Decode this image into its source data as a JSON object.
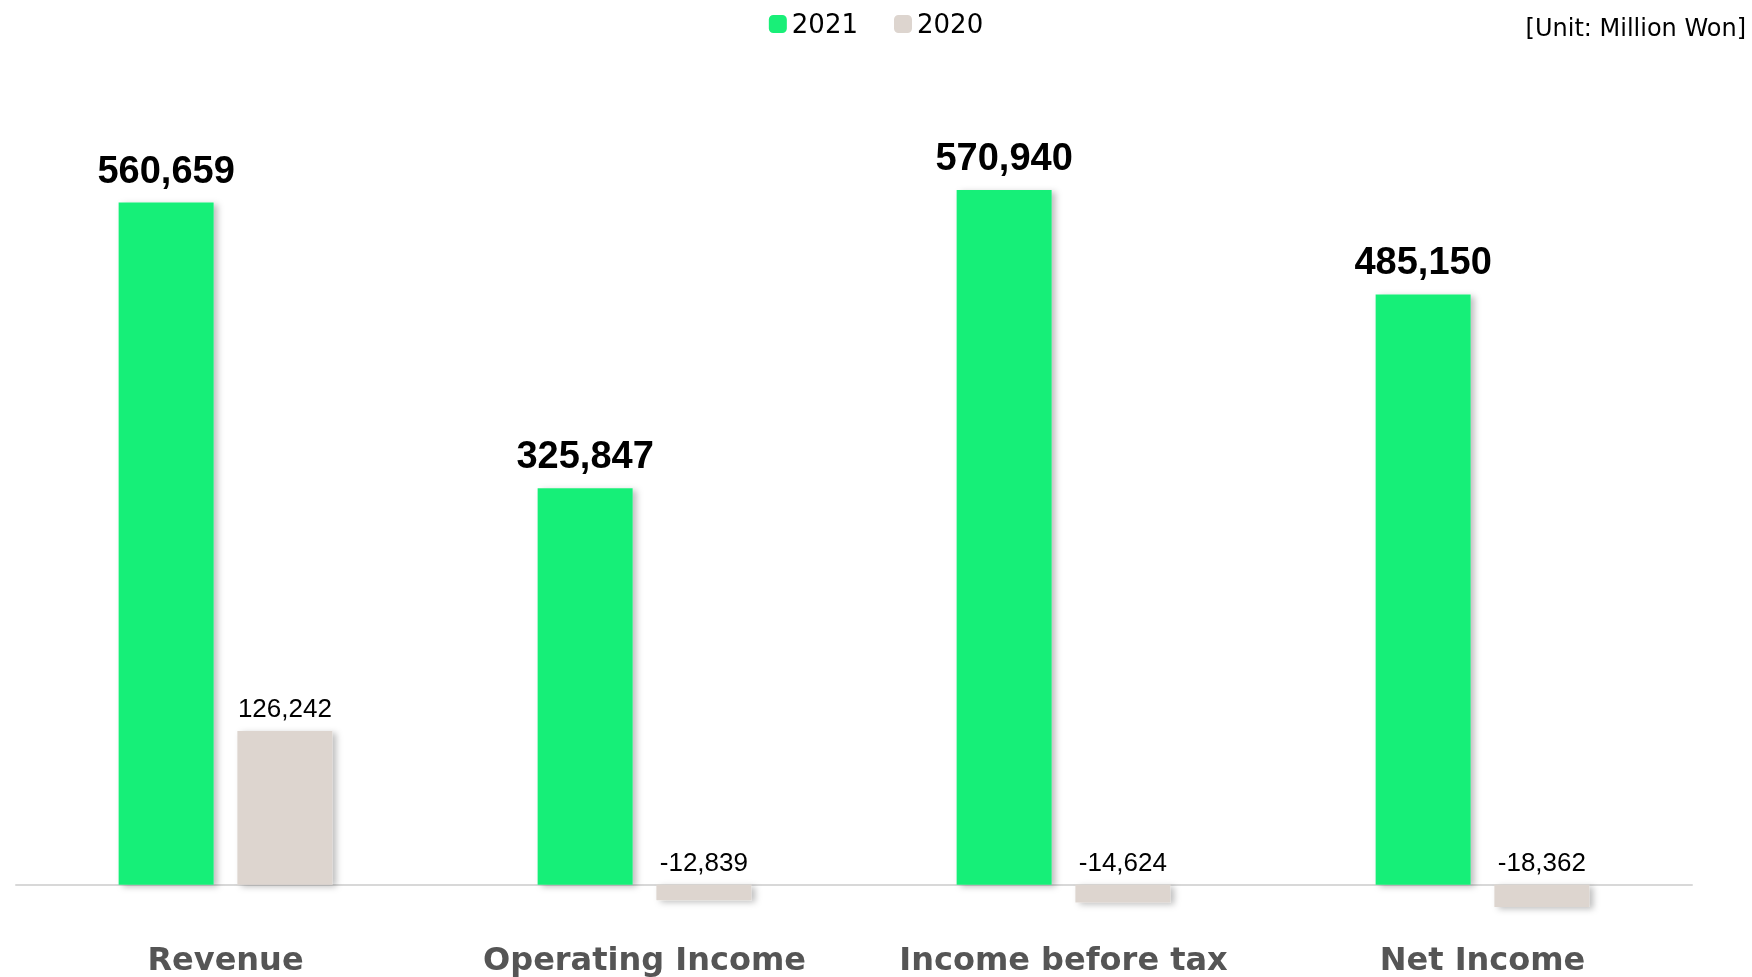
{
  "chart_data": {
    "type": "bar",
    "categories": [
      "Revenue",
      "Operating Income",
      "Income before tax",
      "Net Income"
    ],
    "series": [
      {
        "name": "2021",
        "color": "#19ef78",
        "values": [
          560659,
          325847,
          570940,
          485150
        ],
        "value_labels": [
          "560,659",
          "325,847",
          "570,940",
          "485,150"
        ]
      },
      {
        "name": "2020",
        "color": "#ddd5cf",
        "values": [
          126242,
          -12839,
          -14624,
          -18362
        ],
        "value_labels": [
          "126,242",
          "-12,839",
          "-14,624",
          "-18,362"
        ]
      }
    ],
    "legend": "top",
    "annotations": [
      "[Unit: Million Won]"
    ]
  }
}
